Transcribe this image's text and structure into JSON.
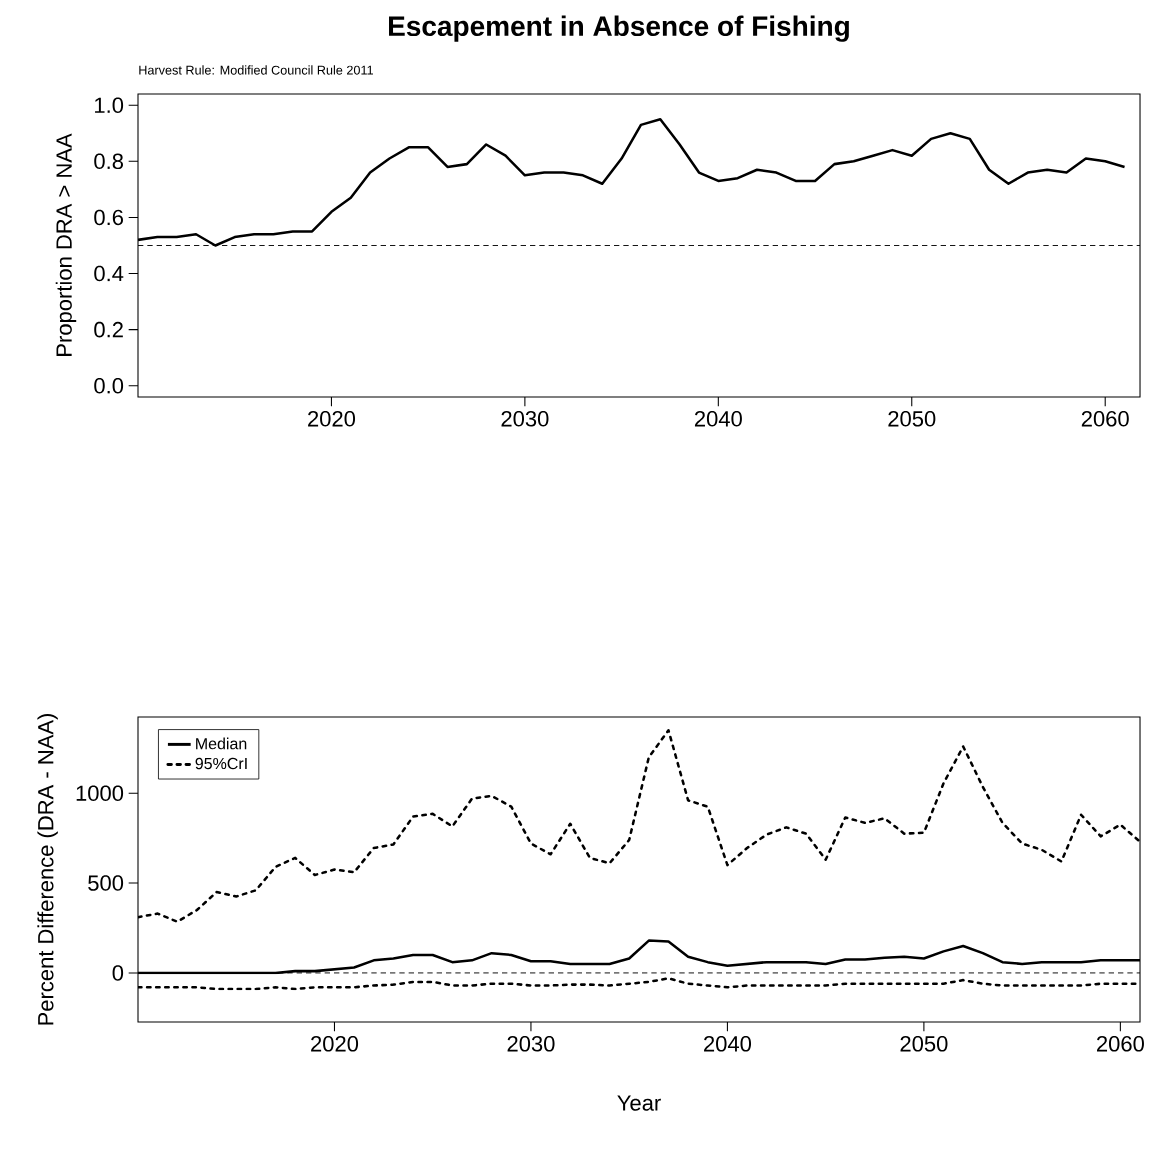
{
  "chart_data": [
    {
      "type": "line",
      "title": "Escapement in Absence of Fishing",
      "subtitle": "Harvest Rule: Modified Council Rule 2011",
      "ylabel": "Proportion DRA > NAA",
      "x": [
        2010,
        2011,
        2012,
        2013,
        2014,
        2015,
        2016,
        2017,
        2018,
        2019,
        2020,
        2021,
        2022,
        2023,
        2024,
        2025,
        2026,
        2027,
        2028,
        2029,
        2030,
        2031,
        2032,
        2033,
        2034,
        2035,
        2036,
        2037,
        2038,
        2039,
        2040,
        2041,
        2042,
        2043,
        2044,
        2045,
        2046,
        2047,
        2048,
        2049,
        2050,
        2051,
        2052,
        2053,
        2054,
        2055,
        2056,
        2057,
        2058,
        2059,
        2060,
        2061
      ],
      "series": [
        {
          "color": "#000000",
          "line_style": "solid",
          "values": [
            0.52,
            0.53,
            0.53,
            0.54,
            0.5,
            0.53,
            0.54,
            0.54,
            0.55,
            0.55,
            0.62,
            0.67,
            0.76,
            0.81,
            0.85,
            0.85,
            0.78,
            0.79,
            0.86,
            0.82,
            0.75,
            0.76,
            0.76,
            0.75,
            0.72,
            0.81,
            0.93,
            0.95,
            0.86,
            0.76,
            0.73,
            0.74,
            0.77,
            0.76,
            0.73,
            0.73,
            0.79,
            0.8,
            0.82,
            0.84,
            0.82,
            0.88,
            0.9,
            0.88,
            0.77,
            0.72,
            0.76,
            0.77,
            0.76,
            0.81,
            0.8,
            0.78
          ]
        }
      ],
      "xlim": [
        2010,
        2061.8
      ],
      "xticks": [
        2020,
        2030,
        2040,
        2050,
        2060
      ],
      "ylim": [
        -0.04,
        1.04
      ],
      "yticks": [
        {
          "value": 0,
          "label": "0.0"
        },
        {
          "value": 0.2,
          "label": "0.2"
        },
        {
          "value": 0.4,
          "label": "0.4"
        },
        {
          "value": 0.6,
          "label": "0.6"
        },
        {
          "value": 0.8,
          "label": "0.8"
        },
        {
          "value": 1,
          "label": "1.0"
        }
      ],
      "ref_lines": [
        {
          "axis": "y",
          "value": 0.5,
          "color": "#000000",
          "line_style": "dashed"
        }
      ],
      "grid": false,
      "legend": false
    },
    {
      "type": "line",
      "xlabel": "Year",
      "ylabel": "Percent Difference (DRA - NAA)",
      "x": [
        2010,
        2011,
        2012,
        2013,
        2014,
        2015,
        2016,
        2017,
        2018,
        2019,
        2020,
        2021,
        2022,
        2023,
        2024,
        2025,
        2026,
        2027,
        2028,
        2029,
        2030,
        2031,
        2032,
        2033,
        2034,
        2035,
        2036,
        2037,
        2038,
        2039,
        2040,
        2041,
        2042,
        2043,
        2044,
        2045,
        2046,
        2047,
        2048,
        2049,
        2050,
        2051,
        2052,
        2053,
        2054,
        2055,
        2056,
        2057,
        2058,
        2059,
        2060,
        2061
      ],
      "series": [
        {
          "name": "Median",
          "color": "#000000",
          "line_style": "solid",
          "values": [
            0,
            0,
            0,
            0,
            0,
            0,
            0,
            0,
            10,
            10,
            20,
            30,
            70,
            80,
            100,
            100,
            60,
            70,
            110,
            100,
            65,
            65,
            50,
            50,
            50,
            80,
            180,
            175,
            90,
            60,
            40,
            50,
            60,
            60,
            60,
            50,
            75,
            75,
            85,
            90,
            80,
            120,
            150,
            110,
            60,
            50,
            60,
            60,
            60,
            70,
            70,
            70
          ]
        },
        {
          "name": "95%CrI",
          "color": "#000000",
          "line_style": "dotted",
          "values": [
            310,
            330,
            285,
            350,
            450,
            425,
            460,
            590,
            640,
            545,
            575,
            560,
            695,
            715,
            870,
            885,
            815,
            970,
            985,
            925,
            720,
            660,
            830,
            640,
            610,
            740,
            1200,
            1350,
            960,
            925,
            600,
            695,
            770,
            810,
            775,
            630,
            865,
            835,
            860,
            775,
            780,
            1055,
            1260,
            1035,
            835,
            720,
            685,
            620,
            880,
            760,
            825,
            730
          ]
        },
        {
          "color": "#000000",
          "line_style": "dotted",
          "values": [
            -80,
            -80,
            -80,
            -80,
            -90,
            -90,
            -90,
            -80,
            -90,
            -80,
            -80,
            -80,
            -70,
            -65,
            -50,
            -50,
            -70,
            -70,
            -60,
            -60,
            -70,
            -70,
            -65,
            -65,
            -70,
            -60,
            -50,
            -30,
            -60,
            -70,
            -80,
            -70,
            -70,
            -70,
            -70,
            -70,
            -60,
            -60,
            -60,
            -60,
            -60,
            -60,
            -40,
            -60,
            -70,
            -70,
            -70,
            -70,
            -70,
            -60,
            -60,
            -60
          ]
        }
      ],
      "xlim": [
        2010,
        2061
      ],
      "xticks": [
        2020,
        2030,
        2040,
        2050,
        2060
      ],
      "ylim": [
        -273,
        1424
      ],
      "yticks": [
        0,
        500,
        1000
      ],
      "ref_lines": [
        {
          "axis": "y",
          "value": 0,
          "color": "#000000",
          "line_style": "dashed"
        }
      ],
      "grid": false,
      "legend": "top left"
    }
  ]
}
